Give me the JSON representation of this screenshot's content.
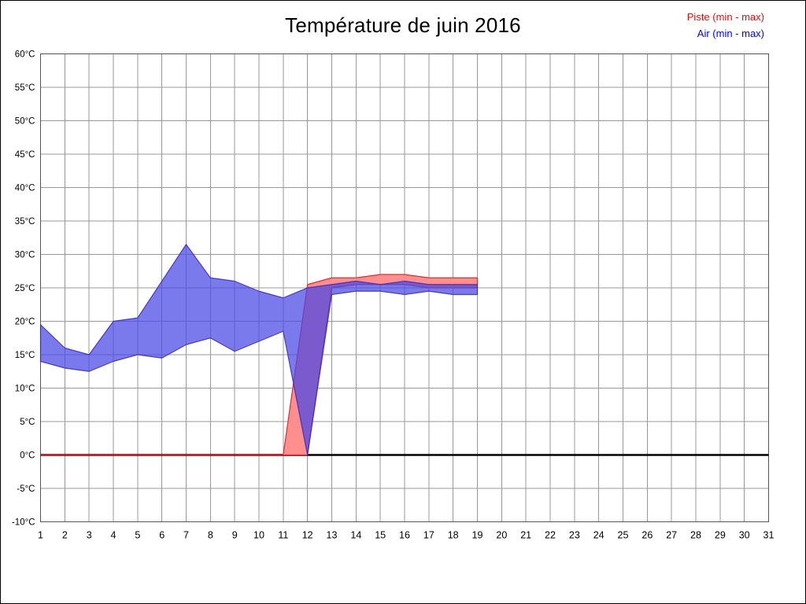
{
  "title": "Température de juin 2016",
  "legend": {
    "piste_label": "Piste (min - max)",
    "air_label": "Air (min - max)"
  },
  "colors": {
    "piste_fill": "#ff8e8e",
    "piste_stroke": "#d93030",
    "piste_legend_text": "#ff0000",
    "air_fill": "rgba(70,70,230,0.72)",
    "air_stroke": "rgba(55,40,185,0.85)",
    "air_legend_text": "#0000ff",
    "grid": "#999999",
    "plot_border": "#555555",
    "zero_line": "#000000",
    "tick_text": "#000000"
  },
  "chart_data": {
    "type": "area",
    "title": "Température de juin 2016",
    "xlabel": "",
    "ylabel": "",
    "xlim": [
      1,
      31
    ],
    "ylim": [
      -10,
      60
    ],
    "grid": true,
    "legend_position": "top-right",
    "x_ticks": [
      1,
      2,
      3,
      4,
      5,
      6,
      7,
      8,
      9,
      10,
      11,
      12,
      13,
      14,
      15,
      16,
      17,
      18,
      19,
      20,
      21,
      22,
      23,
      24,
      25,
      26,
      27,
      28,
      29,
      30,
      31
    ],
    "y_ticks": [
      {
        "value": 60,
        "label": "60°C"
      },
      {
        "value": 55,
        "label": "55°C"
      },
      {
        "value": 50,
        "label": "50°C"
      },
      {
        "value": 45,
        "label": "45°C"
      },
      {
        "value": 40,
        "label": "40°C"
      },
      {
        "value": 35,
        "label": "35°C"
      },
      {
        "value": 30,
        "label": "30°C"
      },
      {
        "value": 25,
        "label": "25°C"
      },
      {
        "value": 20,
        "label": "20°C"
      },
      {
        "value": 15,
        "label": "15°C"
      },
      {
        "value": 10,
        "label": "10°C"
      },
      {
        "value": 5,
        "label": "5°C"
      },
      {
        "value": 0,
        "label": "0°C"
      },
      {
        "value": -5,
        "label": "-5°C"
      },
      {
        "value": -10,
        "label": "-10°C"
      }
    ],
    "x": [
      1,
      2,
      3,
      4,
      5,
      6,
      7,
      8,
      9,
      10,
      11,
      12,
      13,
      14,
      15,
      16,
      17,
      18,
      19
    ],
    "series": [
      {
        "name": "Piste (min - max)",
        "min": [
          0,
          0,
          0,
          0,
          0,
          0,
          0,
          0,
          0,
          0,
          0,
          0,
          25,
          25.5,
          25.5,
          25.5,
          25,
          25,
          25
        ],
        "max": [
          0,
          0,
          0,
          0,
          0,
          0,
          0,
          0,
          0,
          0,
          0,
          25.5,
          26.5,
          26.5,
          27,
          27,
          26.5,
          26.5,
          26.5
        ]
      },
      {
        "name": "Air (min - max)",
        "min": [
          14,
          13,
          12.5,
          14,
          15,
          14.5,
          16.5,
          17.5,
          15.5,
          17,
          18.5,
          0,
          24,
          24.5,
          24.5,
          24,
          24.5,
          24,
          24
        ],
        "max": [
          19.5,
          16,
          15,
          20,
          20.5,
          26,
          31.5,
          26.5,
          26,
          24.5,
          23.5,
          25,
          25.5,
          26,
          25.5,
          26,
          25.5,
          25.5,
          25.5
        ]
      }
    ],
    "zero_line_value": 0
  }
}
